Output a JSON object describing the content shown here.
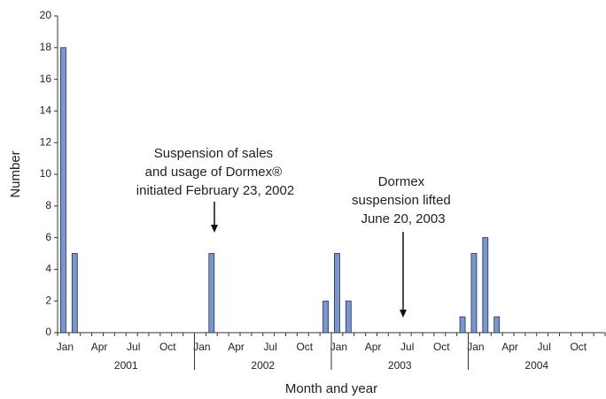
{
  "chart_data": {
    "type": "bar",
    "y_label": "Number",
    "x_label": "Month and year",
    "categories": [
      "Jan",
      null,
      null,
      "Apr",
      null,
      null,
      "Jul",
      null,
      null,
      "Oct",
      null,
      null,
      "Jan",
      null,
      null,
      "Apr",
      null,
      null,
      "Jul",
      null,
      null,
      "Oct",
      null,
      null,
      "Jan",
      null,
      null,
      "Apr",
      null,
      null,
      "Jul",
      null,
      null,
      "Oct",
      null,
      null,
      "Jan",
      null,
      null,
      "Apr",
      null,
      null,
      "Jul",
      null,
      null,
      "Oct",
      null,
      null
    ],
    "years": [
      "2001",
      "2002",
      "2003",
      "2004"
    ],
    "values": [
      18,
      5,
      0,
      0,
      0,
      0,
      0,
      0,
      0,
      0,
      0,
      0,
      0,
      5,
      0,
      0,
      0,
      0,
      0,
      0,
      0,
      0,
      0,
      2,
      5,
      2,
      0,
      0,
      0,
      0,
      0,
      0,
      0,
      0,
      0,
      1,
      5,
      6,
      1,
      0,
      0,
      0,
      0,
      0,
      0,
      0,
      0,
      0
    ],
    "color": "#7b96c8",
    "ylim": [
      0,
      20
    ],
    "yticks": [
      0,
      2,
      4,
      6,
      8,
      10,
      12,
      14,
      16,
      18,
      20
    ],
    "annotations": [
      {
        "lines": [
          "Suspension of sales",
          "and usage of Dormex®",
          "initiated February 23, 2002"
        ]
      },
      {
        "lines": [
          "Dormex",
          "suspension lifted",
          "June 20, 2003"
        ]
      }
    ]
  }
}
